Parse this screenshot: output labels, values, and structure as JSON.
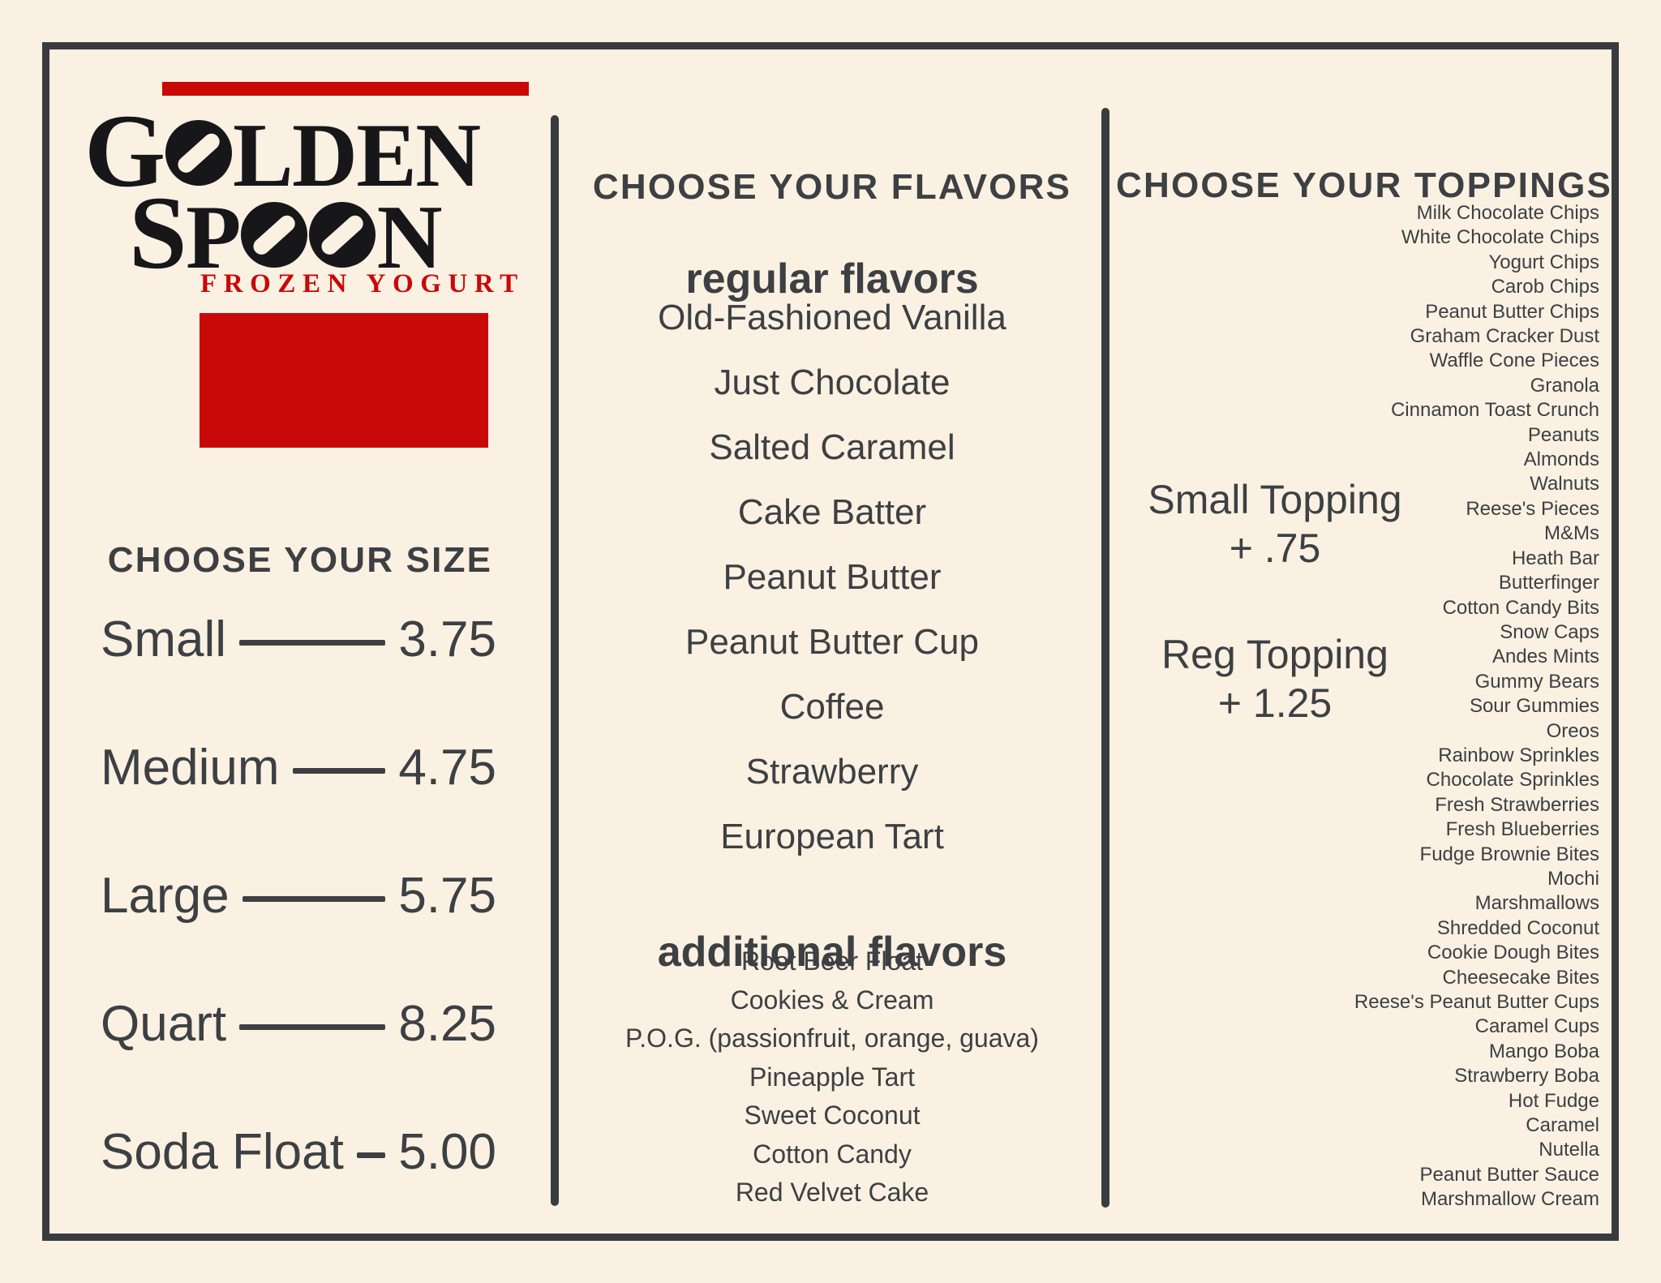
{
  "colors": {
    "background": "#faf1e3",
    "ink": "#3d4043",
    "frame": "#393c3f",
    "logo_black": "#17171a",
    "accent_red": "#c90808"
  },
  "brand": {
    "name_line1": "GOLDEN",
    "name_line2": "SPOON",
    "tagline": "FROZEN YOGURT"
  },
  "size_section": {
    "heading": "CHOOSE YOUR SIZE",
    "items": [
      {
        "label": "Small",
        "price": "3.75"
      },
      {
        "label": "Medium",
        "price": "4.75"
      },
      {
        "label": "Large",
        "price": "5.75"
      },
      {
        "label": "Quart",
        "price": "8.25"
      },
      {
        "label": "Soda Float",
        "price": "5.00"
      }
    ]
  },
  "flavors_section": {
    "heading": "CHOOSE YOUR FLAVORS",
    "regular": {
      "heading": "regular flavors",
      "items": [
        "Old-Fashioned Vanilla",
        "Just Chocolate",
        "Salted Caramel",
        "Cake Batter",
        "Peanut Butter",
        "Peanut Butter Cup",
        "Coffee",
        "Strawberry",
        "European Tart"
      ]
    },
    "additional": {
      "heading": "additional flavors",
      "items": [
        "Root Beer Float",
        "Cookies & Cream",
        "P.O.G. (passionfruit, orange, guava)",
        "Pineapple Tart",
        "Sweet Coconut",
        "Cotton Candy",
        "Red Velvet Cake"
      ]
    }
  },
  "toppings_section": {
    "heading": "CHOOSE YOUR TOPPINGS",
    "pricing": [
      {
        "label": "Small Topping",
        "price": "+ .75"
      },
      {
        "label": "Reg Topping",
        "price": "+ 1.25"
      }
    ],
    "items": [
      "Milk Chocolate Chips",
      "White Chocolate Chips",
      "Yogurt Chips",
      "Carob Chips",
      "Peanut Butter Chips",
      "Graham Cracker Dust",
      "Waffle Cone Pieces",
      "Granola",
      "Cinnamon Toast Crunch",
      "Peanuts",
      "Almonds",
      "Walnuts",
      "Reese's Pieces",
      "M&Ms",
      "Heath Bar",
      "Butterfinger",
      "Cotton Candy Bits",
      "Snow Caps",
      "Andes Mints",
      "Gummy Bears",
      "Sour Gummies",
      "Oreos",
      "Rainbow Sprinkles",
      "Chocolate Sprinkles",
      "Fresh Strawberries",
      "Fresh Blueberries",
      "Fudge Brownie Bites",
      "Mochi",
      "Marshmallows",
      "Shredded Coconut",
      "Cookie Dough Bites",
      "Cheesecake Bites",
      "Reese's Peanut Butter Cups",
      "Caramel Cups",
      "Mango Boba",
      "Strawberry Boba",
      "Hot Fudge",
      "Caramel",
      "Nutella",
      "Peanut Butter Sauce",
      "Marshmallow Cream"
    ]
  }
}
